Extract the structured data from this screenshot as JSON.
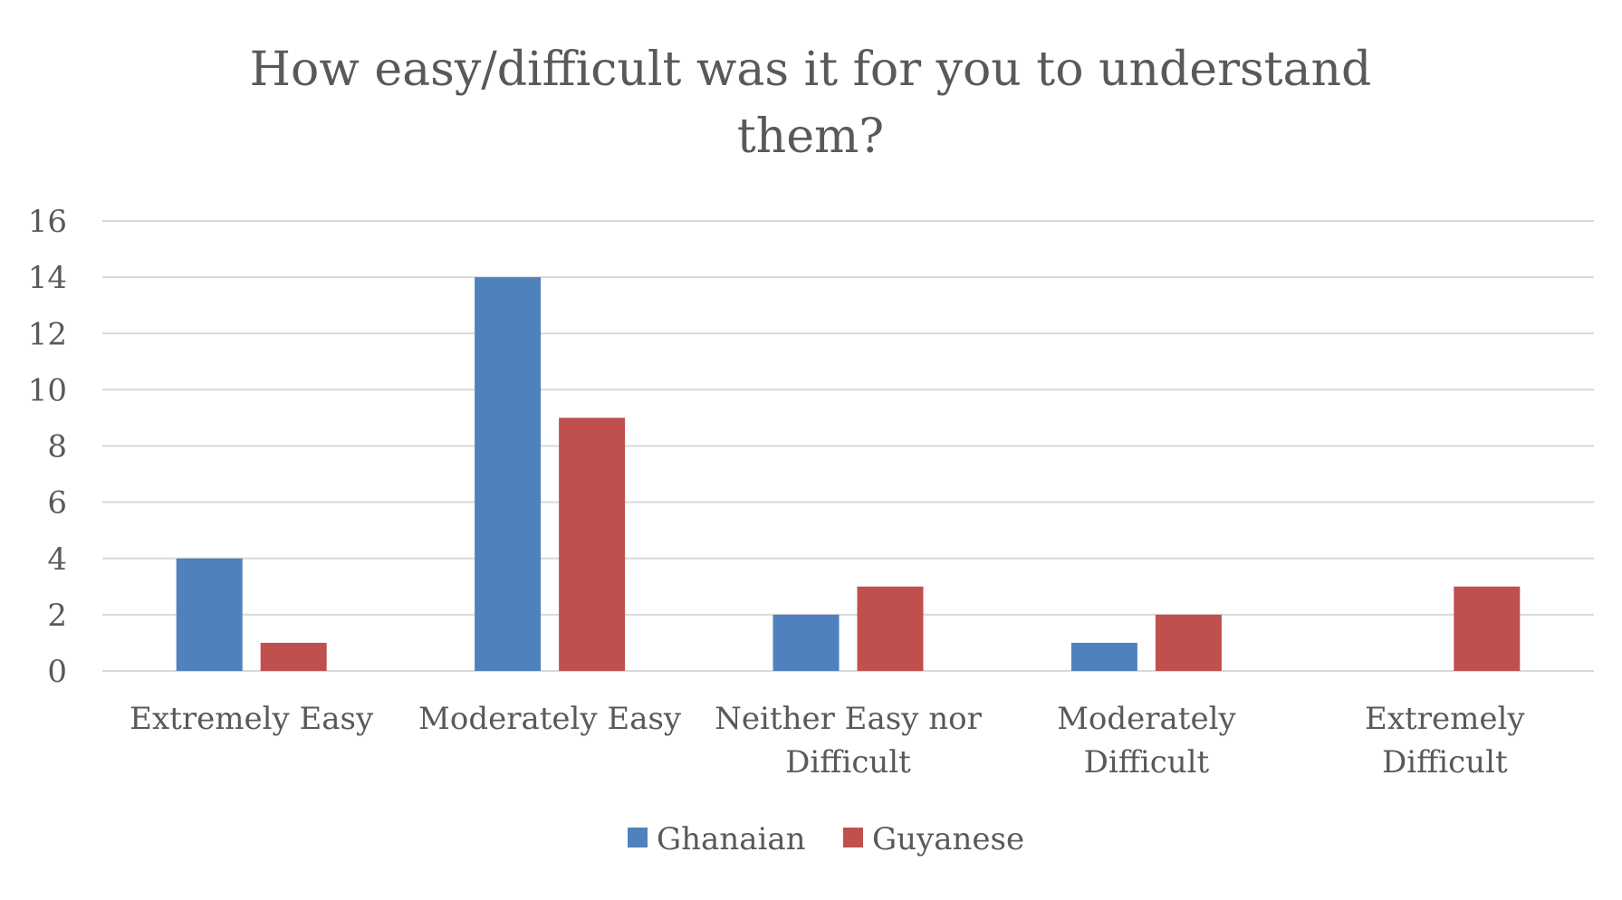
{
  "chart_data": {
    "type": "bar",
    "title": "How easy/difficult was it for you to understand them?",
    "categories": [
      "Extremely Easy",
      "Moderately Easy",
      "Neither Easy nor Difficult",
      "Moderately Difficult",
      "Extremely Difficult"
    ],
    "series": [
      {
        "name": "Ghanaian",
        "color": "#4F81BD",
        "values": [
          4,
          14,
          2,
          1,
          0
        ]
      },
      {
        "name": "Guyanese",
        "color": "#C0504D",
        "values": [
          1,
          9,
          3,
          2,
          3
        ]
      }
    ],
    "ylim": [
      0,
      16
    ],
    "yticks": [
      0,
      2,
      4,
      6,
      8,
      10,
      12,
      14,
      16
    ],
    "grid": true,
    "legend": "bottom",
    "xlabel": "",
    "ylabel": ""
  }
}
